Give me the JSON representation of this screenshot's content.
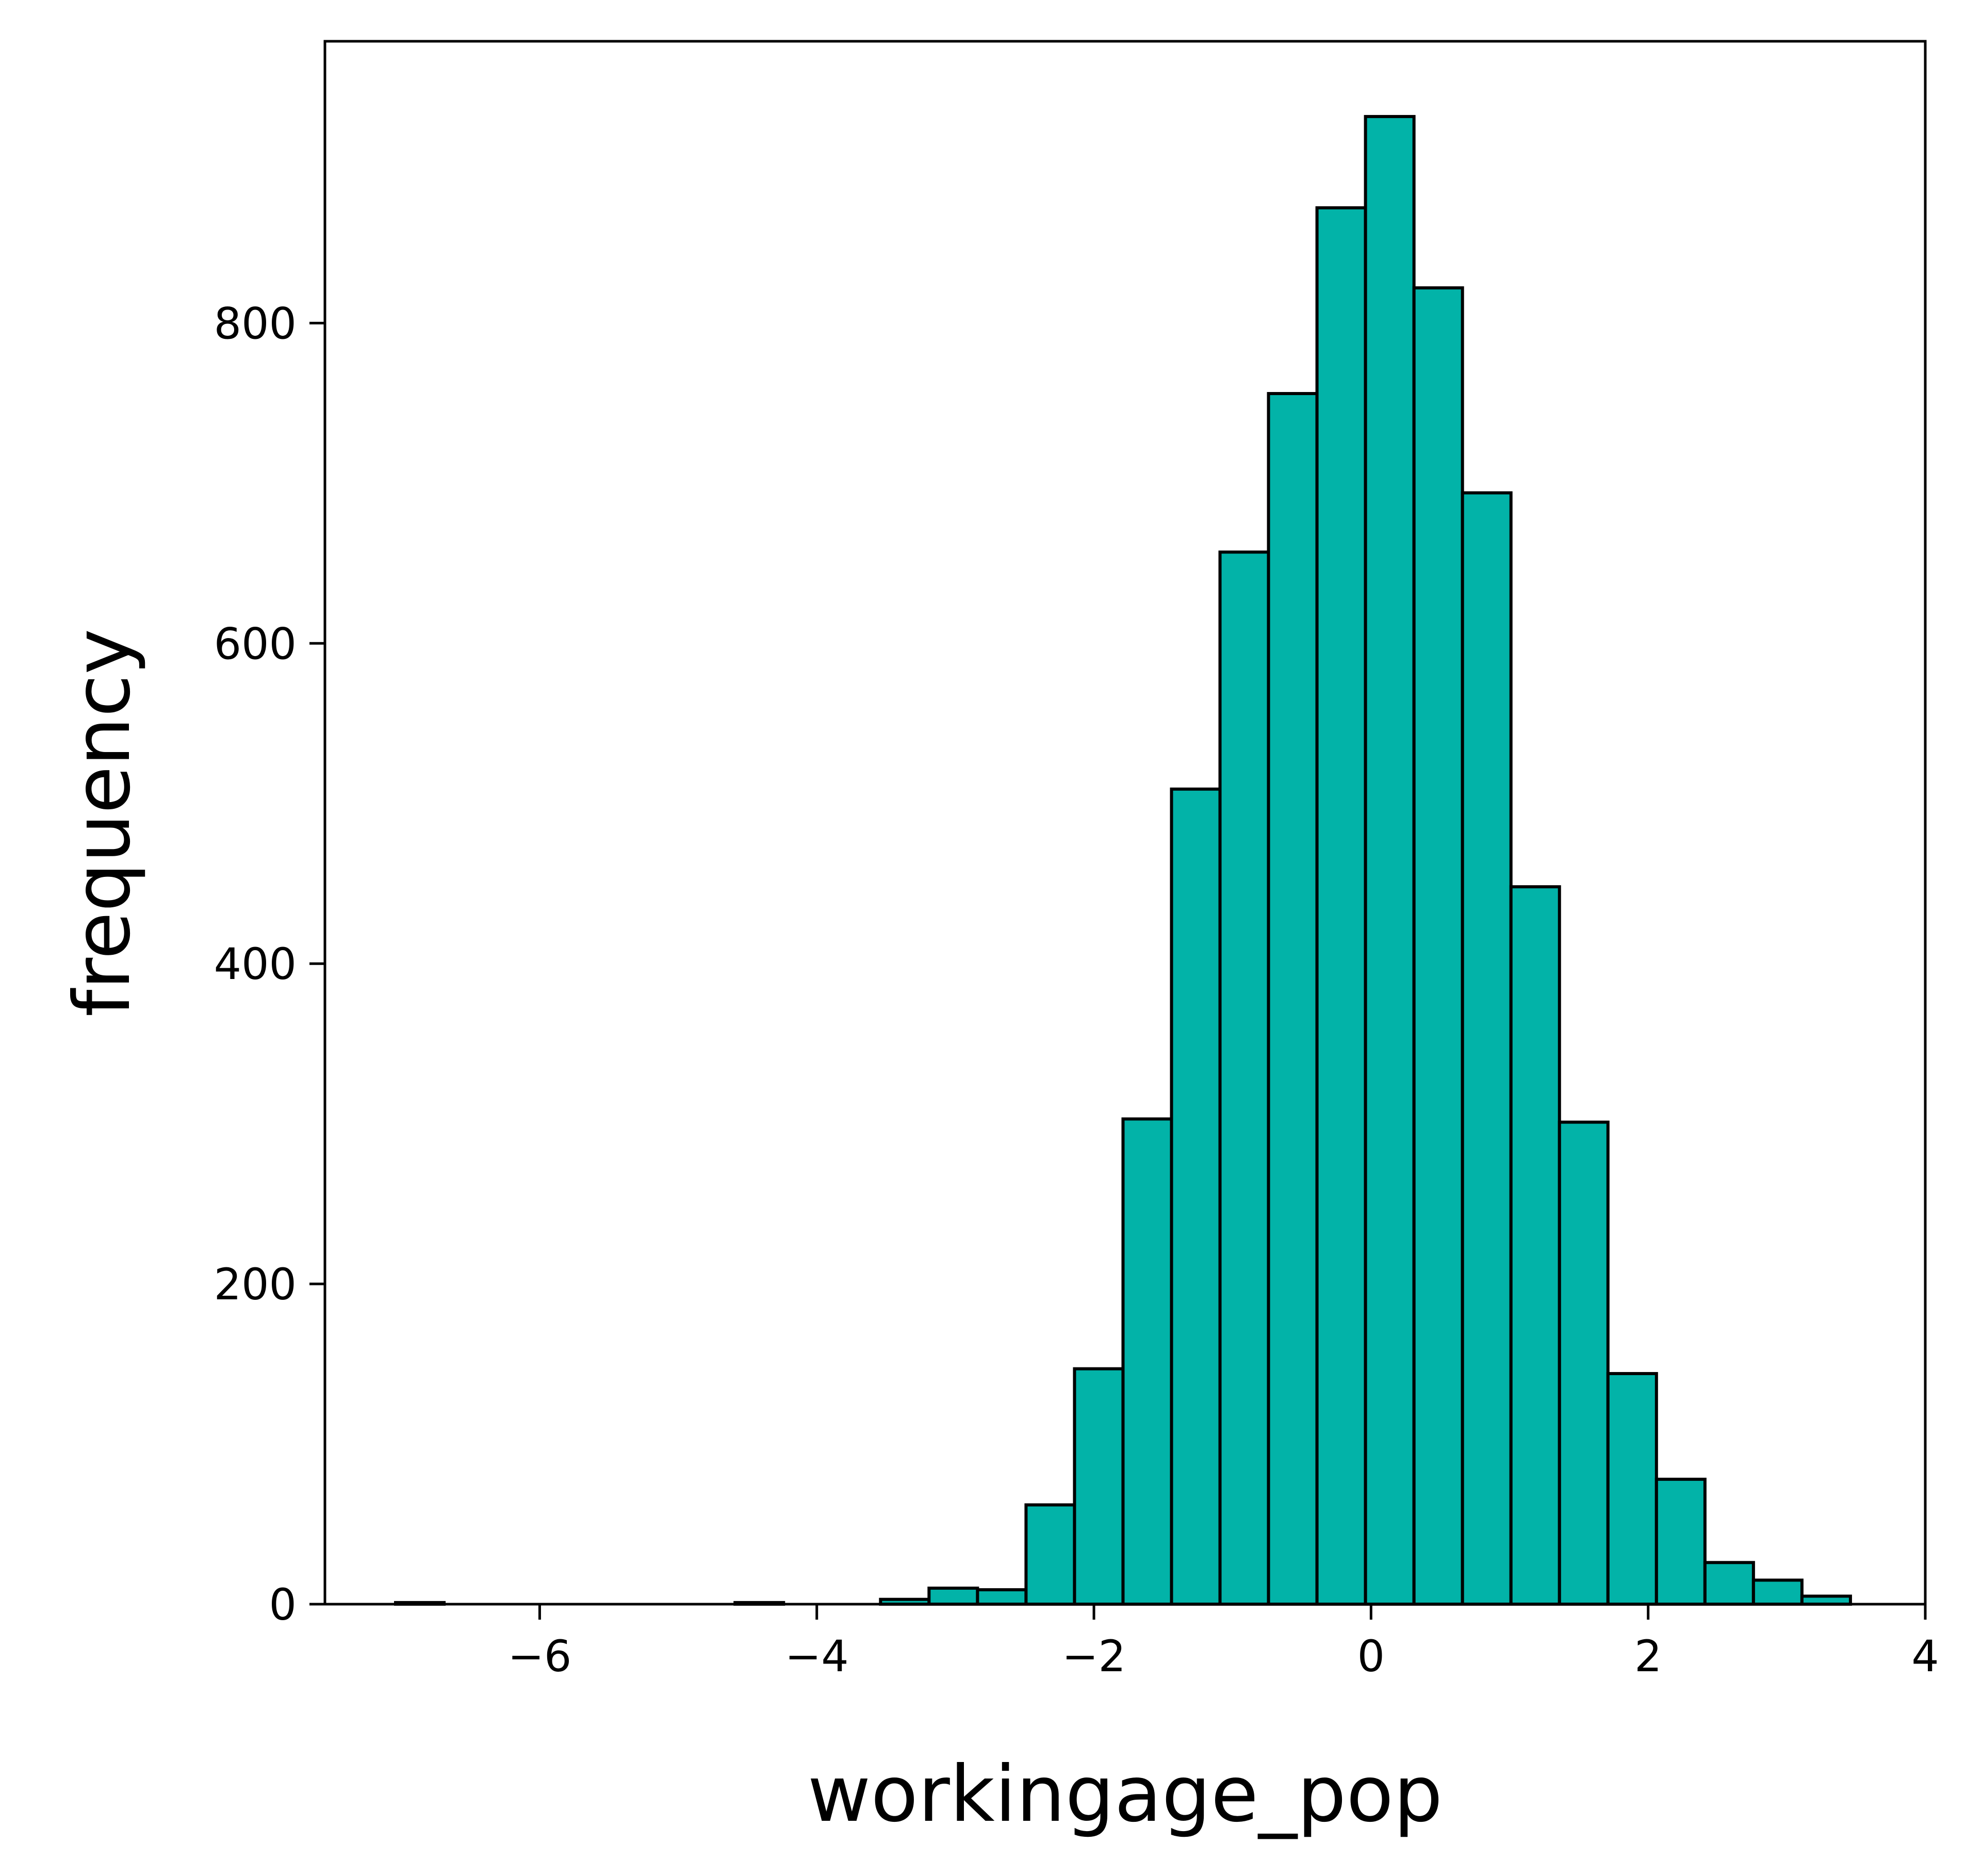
{
  "chart_data": {
    "type": "bar",
    "histogram": true,
    "xlabel": "workingage_pop",
    "ylabel": "frequency",
    "xlim": [
      -7.55,
      4.0
    ],
    "ylim": [
      0,
      976
    ],
    "x_ticks": [
      -6,
      -4,
      -2,
      0,
      2,
      4
    ],
    "x_tick_labels": [
      "−6",
      "−4",
      "−2",
      "0",
      "2",
      "4"
    ],
    "y_ticks": [
      0,
      200,
      400,
      600,
      800
    ],
    "y_tick_labels": [
      "0",
      "200",
      "400",
      "600",
      "800"
    ],
    "bin_width": 0.35,
    "bin_edges": [
      -7.04,
      -6.69,
      -6.34,
      -5.99,
      -5.64,
      -5.29,
      -4.94,
      -4.59,
      -4.24,
      -3.89,
      -3.54,
      -3.19,
      -2.84,
      -2.49,
      -2.14,
      -1.79,
      -1.44,
      -1.09,
      -0.74,
      -0.39,
      -0.04,
      0.31,
      0.66,
      1.01,
      1.36,
      1.71,
      2.06,
      2.41,
      2.76,
      3.11,
      3.46
    ],
    "values": [
      1,
      0,
      0,
      0,
      0,
      0,
      0,
      1,
      0,
      0,
      3,
      10,
      9,
      62,
      147,
      303,
      509,
      657,
      756,
      872,
      929,
      822,
      694,
      448,
      301,
      144,
      78,
      26,
      15,
      5
    ],
    "grid": false,
    "legend": "none",
    "colors": {
      "bar_fill": "#02b3a8",
      "bar_edge": "#000000",
      "axes": "#000000",
      "background": "#ffffff"
    }
  }
}
